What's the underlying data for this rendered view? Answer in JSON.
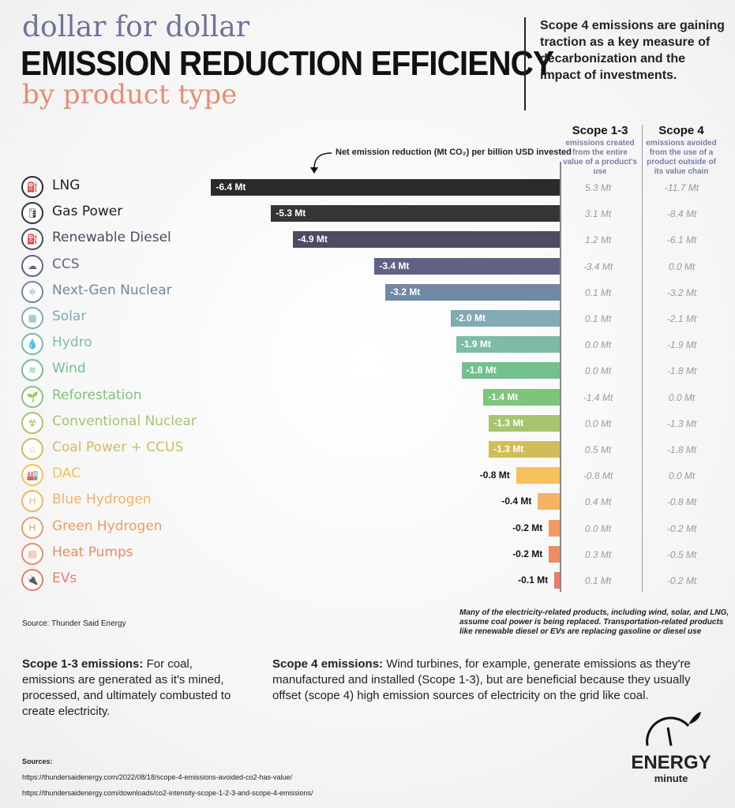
{
  "header": {
    "line1": "dollar for dollar",
    "line2": "EMISSION REDUCTION EFFICIENCY",
    "line3": "by product type",
    "intro": "Scope 4 emissions are gaining traction as a key measure of decarbonization and the impact of investments."
  },
  "columns": {
    "scope13_title": "Scope 1-3",
    "scope13_sub": "emissions created from the entire value of a product's use",
    "scope4_title": "Scope 4",
    "scope4_sub": "emissions avoided from the use of a product outside of its value chain"
  },
  "chart_data": {
    "type": "bar",
    "orientation": "horizontal",
    "annotation": "Net emission reduction (Mt CO₂) per billion USD invested",
    "unit": "Mt",
    "categories": [
      "LNG",
      "Gas Power",
      "Renewable Diesel",
      "CCS",
      "Next-Gen Nuclear",
      "Solar",
      "Hydro",
      "Wind",
      "Reforestation",
      "Conventional Nuclear",
      "Coal Power + CCUS",
      "DAC",
      "Blue Hydrogen",
      "Green Hydrogen",
      "Heat Pumps",
      "EVs"
    ],
    "values": [
      -6.4,
      -5.3,
      -4.9,
      -3.4,
      -3.2,
      -2.0,
      -1.9,
      -1.8,
      -1.4,
      -1.3,
      -1.3,
      -0.8,
      -0.4,
      -0.2,
      -0.2,
      -0.1
    ],
    "value_labels": [
      "-6.4 Mt",
      "-5.3 Mt",
      "-4.9 Mt",
      "-3.4 Mt",
      "-3.2 Mt",
      "-2.0 Mt",
      "-1.9 Mt",
      "-1.8 Mt",
      "-1.4 Mt",
      "-1.3 Mt",
      "-1.3 Mt",
      "-0.8 Mt",
      "-0.4 Mt",
      "-0.2 Mt",
      "-0.2 Mt",
      "-0.1 Mt"
    ],
    "scope13": [
      "5.3  Mt",
      "3.1  Mt",
      "1.2  Mt",
      "-3.4  Mt",
      "0.1  Mt",
      "0.1  Mt",
      "0.0  Mt",
      "0.0  Mt",
      "-1.4  Mt",
      "0.0  Mt",
      "0.5  Mt",
      "-0.8  Mt",
      "0.4  Mt",
      "0.0  Mt",
      "0.3  Mt",
      "0.1  Mt"
    ],
    "scope4": [
      "-11.7 Mt",
      "-8.4  Mt",
      "-6.1  Mt",
      "0.0  Mt",
      "-3.2  Mt",
      "-2.1  Mt",
      "-1.9  Mt",
      "-1.8  Mt",
      "0.0  Mt",
      "-1.3  Mt",
      "-1.8  Mt",
      "0.0  Mt",
      "-0.8  Mt",
      "-0.2  Mt",
      "-0.5  Mt",
      "-0.2  Mt"
    ],
    "colors": [
      "#2a2a2a",
      "#353535",
      "#4b4b62",
      "#616185",
      "#7088a4",
      "#82aab4",
      "#7dbba8",
      "#72c08f",
      "#7fc47b",
      "#a7c56c",
      "#d1bc5c",
      "#f6c05a",
      "#f5b262",
      "#f19b62",
      "#ee8b63",
      "#ec7b68"
    ],
    "icons": [
      "lng-tank-icon",
      "gas-cylinder-icon",
      "fuel-can-icon",
      "co2-cloud-icon",
      "nuclear-plant-icon",
      "solar-panel-icon",
      "water-drop-icon",
      "wind-icon",
      "seedling-icon",
      "radiation-icon",
      "coal-plant-icon",
      "factory-icon",
      "hydrogen-icon",
      "hydrogen-icon",
      "heat-pump-icon",
      "ev-charger-icon"
    ],
    "glyphs": [
      "⛽",
      "🛢",
      "⛽",
      "☁",
      "⚛",
      "▦",
      "💧",
      "≋",
      "🌱",
      "☢",
      "⌂",
      "🏭",
      "H",
      "H",
      "▤",
      "🔌"
    ]
  },
  "footer": {
    "source": "Source: Thunder Said Energy",
    "note": "Many of the electricity-related products, including wind, solar, and LNG, assume coal power is being replaced. Transportation-related products like renewable diesel or EVs are replacing gasoline or diesel use",
    "scope13_head": "Scope 1-3 emissions:",
    "scope13_text": " For coal, emissions are generated as it's mined, processed, and ultimately combusted to create electricity.",
    "scope4_head": "Scope 4 emissions:",
    "scope4_text": " Wind turbines, for example, generate emissions as they're manufactured and installed (Scope 1-3), but are beneficial because they usually offset (scope 4) high emission sources of electricity on the grid like coal.",
    "sources_label": "Sources:",
    "src1": "https://thundersaidenergy.com/2022/08/18/scope-4-emissions-avoided-co2-has-value/",
    "src2": "https://thundersaidenergy.com/downloads/co2-intensity-scope-1-2-3-and-scope-4-emissions/",
    "logo_top": "ENERGY",
    "logo_bottom": "minute"
  }
}
